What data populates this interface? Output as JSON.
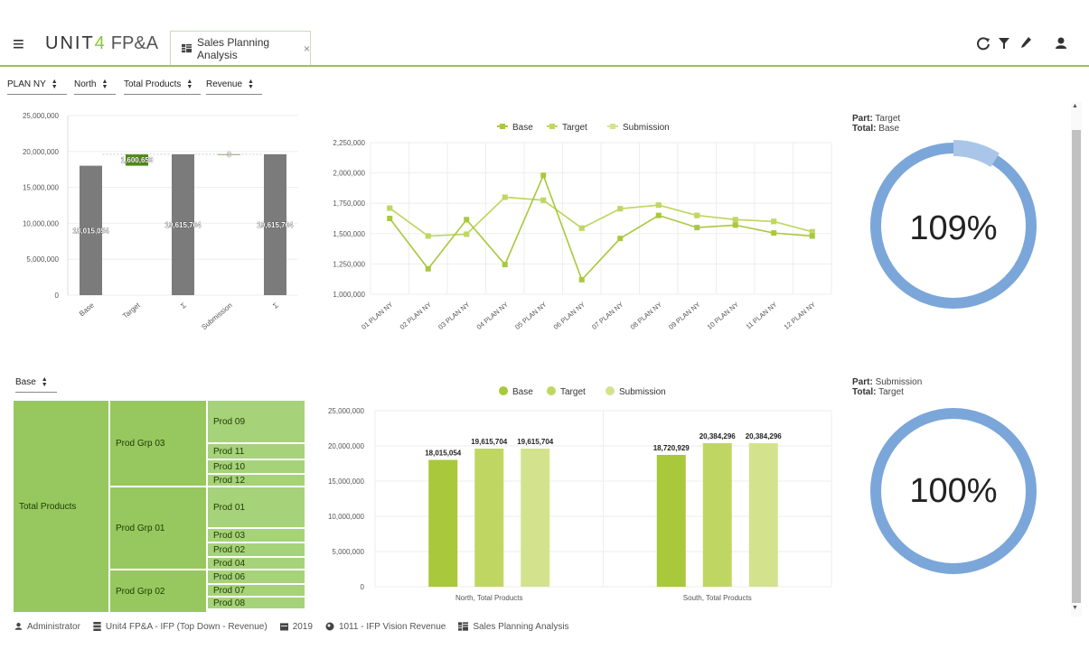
{
  "header": {
    "logo_brand_a": "UNIT",
    "logo_brand_b": "4",
    "logo_product": "FP&A",
    "tab_label": "Sales Planning Analysis",
    "tab_close": "×",
    "icons": [
      "refresh-icon",
      "filter-icon",
      "edit-icon",
      "user-icon"
    ]
  },
  "filters": [
    {
      "label": "PLAN NY"
    },
    {
      "label": "North"
    },
    {
      "label": "Total Products"
    },
    {
      "label": "Revenue"
    }
  ],
  "treemap_selector": {
    "label": "Base"
  },
  "treemap": {
    "root": "Total Products",
    "groups": [
      "Prod Grp 03",
      "Prod Grp 01",
      "Prod Grp 02"
    ],
    "products": [
      "Prod 09",
      "Prod 11",
      "Prod 10",
      "Prod 12",
      "Prod 01",
      "Prod 03",
      "Prod 02",
      "Prod 04",
      "Prod 06",
      "Prod 07",
      "Prod 08"
    ]
  },
  "gauges": [
    {
      "part_label": "Part",
      "part_value": "Target",
      "total_label": "Total",
      "total_value": "Base",
      "percent": "109%",
      "fraction": 1.09
    },
    {
      "part_label": "Part",
      "part_value": "Submission",
      "total_label": "Total",
      "total_value": "Target",
      "percent": "100%",
      "fraction": 1.0
    }
  ],
  "colors": {
    "accent": "#9dc15b",
    "base": "#a9c83c",
    "target": "#bfd762",
    "submission": "#d3e38d",
    "gauge": "#7ba6d9",
    "waterfall_bar": "#7b7b7b",
    "waterfall_pos": "#4f8a10"
  },
  "footer": {
    "user": "Administrator",
    "model": "Unit4 FP&A - IFP (Top Down - Revenue)",
    "year": "2019",
    "version": "1011 - IFP Vision Revenue",
    "view": "Sales Planning Analysis"
  },
  "chart_data": [
    {
      "type": "bar",
      "subtype": "waterfall",
      "categories": [
        "Base",
        "Target",
        "Σ",
        "Submission",
        "Σ"
      ],
      "values": [
        18015054,
        1600650,
        19615704,
        0,
        19615704
      ],
      "data_labels": [
        "18,015,054",
        "1,600,650",
        "19,615,704",
        "0",
        "19,615,704"
      ],
      "ylim": [
        0,
        25000000
      ],
      "yticks": [
        "25,000,000",
        "20,000,000",
        "15,000,000",
        "10,000,000",
        "5,000,000",
        "0"
      ]
    },
    {
      "type": "line",
      "categories": [
        "01 PLAN NY",
        "02 PLAN NY",
        "03 PLAN NY",
        "04 PLAN NY",
        "05 PLAN NY",
        "06 PLAN NY",
        "07 PLAN NY",
        "08 PLAN NY",
        "09 PLAN NY",
        "10 PLAN NY",
        "11 PLAN NY",
        "12 PLAN NY"
      ],
      "series": [
        {
          "name": "Base",
          "values": [
            1625000,
            1210000,
            1615000,
            1245000,
            1980000,
            1120000,
            1460000,
            1650000,
            1550000,
            1570000,
            1505000,
            1480000
          ]
        },
        {
          "name": "Target",
          "values": [
            1710000,
            1480000,
            1495000,
            1800000,
            1775000,
            1545000,
            1705000,
            1735000,
            1650000,
            1615000,
            1600000,
            1515000
          ]
        },
        {
          "name": "Submission",
          "values": [
            1710000,
            1480000,
            1495000,
            1800000,
            1775000,
            1545000,
            1705000,
            1735000,
            1650000,
            1615000,
            1600000,
            1515000
          ]
        }
      ],
      "ylim": [
        1000000,
        2250000
      ],
      "yticks": [
        "2,250,000",
        "2,000,000",
        "1,750,000",
        "1,500,000",
        "1,250,000",
        "1,000,000"
      ],
      "legend": "top"
    },
    {
      "type": "bar",
      "categories": [
        "North, Total Products",
        "South, Total Products"
      ],
      "series": [
        {
          "name": "Base",
          "values": [
            18015054,
            18720929
          ],
          "labels": [
            "18,015,054",
            "18,720,929"
          ]
        },
        {
          "name": "Target",
          "values": [
            19615704,
            20384296
          ],
          "labels": [
            "19,615,704",
            "20,384,296"
          ]
        },
        {
          "name": "Submission",
          "values": [
            19615704,
            20384296
          ],
          "labels": [
            "19,615,704",
            "20,384,296"
          ]
        }
      ],
      "ylim": [
        0,
        25000000
      ],
      "yticks": [
        "25,000,000",
        "20,000,000",
        "15,000,000",
        "10,000,000",
        "5,000,000",
        "0"
      ],
      "legend": "top"
    }
  ]
}
